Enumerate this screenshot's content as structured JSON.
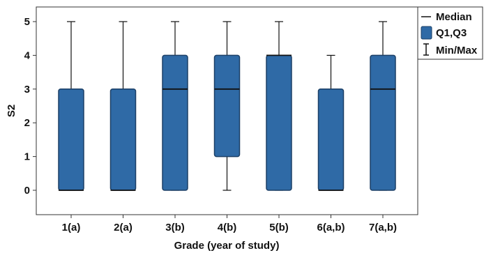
{
  "chart_data": {
    "type": "box",
    "xlabel": "Grade (year of study)",
    "ylabel": "S2",
    "ylim": [
      -0.7,
      5.35
    ],
    "yticks": [
      "0",
      "1",
      "2",
      "3",
      "4",
      "5"
    ],
    "categories": [
      "1(a)",
      "2(a)",
      "3(b)",
      "4(b)",
      "5(b)",
      "6(a,b)",
      "7(a,b)"
    ],
    "boxes": [
      {
        "category": "1(a)",
        "min": 0,
        "q1": 0,
        "median": 0,
        "q3": 3,
        "max": 5
      },
      {
        "category": "2(a)",
        "min": 0,
        "q1": 0,
        "median": 0,
        "q3": 3,
        "max": 5
      },
      {
        "category": "3(b)",
        "min": 0,
        "q1": 0,
        "median": 3,
        "q3": 4,
        "max": 5
      },
      {
        "category": "4(b)",
        "min": 0,
        "q1": 1,
        "median": 3,
        "q3": 4,
        "max": 5
      },
      {
        "category": "5(b)",
        "min": 0,
        "q1": 0,
        "median": 4,
        "q3": 4,
        "max": 5
      },
      {
        "category": "6(a,b)",
        "min": 0,
        "q1": 0,
        "median": 0,
        "q3": 3,
        "max": 4
      },
      {
        "category": "7(a,b)",
        "min": 0,
        "q1": 0,
        "median": 3,
        "q3": 4,
        "max": 5
      }
    ],
    "legend": {
      "position": "top-right",
      "items": [
        "Median",
        "Q1,Q3",
        "Min/Max"
      ]
    },
    "grid": false,
    "colors": {
      "box_fill": "#2f6aa6",
      "box_stroke": "#1b3f66",
      "line": "#111111"
    }
  }
}
